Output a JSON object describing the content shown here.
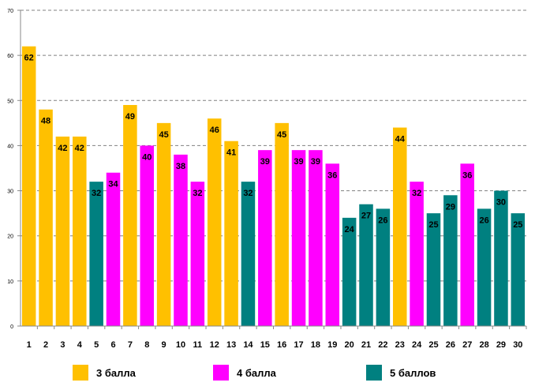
{
  "chart_data": {
    "type": "bar",
    "title": "",
    "xlabel": "",
    "ylabel": "",
    "ylim": [
      0,
      70
    ],
    "yticks": [
      "0",
      "10",
      "20",
      "30",
      "40",
      "50",
      "60",
      "70"
    ],
    "grid": true,
    "categories": [
      "1",
      "2",
      "3",
      "4",
      "5",
      "6",
      "7",
      "8",
      "9",
      "10",
      "11",
      "12",
      "13",
      "14",
      "15",
      "16",
      "17",
      "18",
      "19",
      "20",
      "21",
      "22",
      "23",
      "24",
      "25",
      "26",
      "27",
      "28",
      "29",
      "30"
    ],
    "values": [
      62,
      48,
      42,
      42,
      32,
      34,
      49,
      40,
      45,
      38,
      32,
      46,
      41,
      32,
      39,
      45,
      39,
      39,
      36,
      24,
      27,
      26,
      44,
      32,
      25,
      29,
      36,
      26,
      30,
      25
    ],
    "groups": [
      3,
      3,
      3,
      3,
      5,
      4,
      3,
      4,
      3,
      4,
      4,
      3,
      3,
      5,
      4,
      3,
      4,
      4,
      4,
      5,
      5,
      5,
      3,
      4,
      5,
      5,
      4,
      5,
      5,
      5
    ],
    "legend": [
      {
        "group": 3,
        "label": "3 балла",
        "color": "#FFC000"
      },
      {
        "group": 4,
        "label": "4 балла",
        "color": "#FF00FF"
      },
      {
        "group": 5,
        "label": "5 баллов",
        "color": "#008080"
      }
    ]
  }
}
